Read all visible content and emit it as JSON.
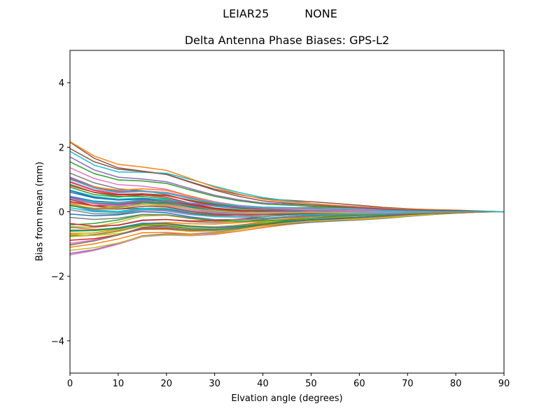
{
  "suptitle": {
    "antenna": "LEIAR25",
    "radome": "NONE"
  },
  "chart_data": {
    "type": "line",
    "title": "Delta Antenna Phase Biases: GPS-L2",
    "xlabel": "Elvation angle (degrees)",
    "ylabel": "Bias from mean (mm)",
    "xlim": [
      0,
      90
    ],
    "ylim": [
      -5,
      5
    ],
    "xticks": [
      0,
      10,
      20,
      30,
      40,
      50,
      60,
      70,
      80,
      90
    ],
    "yticks": [
      -4,
      -2,
      0,
      2,
      4
    ],
    "ytick_labels": [
      "−4",
      "−2",
      "0",
      "2",
      "4"
    ],
    "grid": false,
    "legend": "none",
    "x": [
      0,
      5,
      10,
      15,
      20,
      25,
      30,
      35,
      40,
      45,
      50,
      55,
      60,
      65,
      70,
      75,
      80,
      85,
      90
    ],
    "series_count": 60,
    "envelope": {
      "upper": [
        2.3,
        1.8,
        1.5,
        1.4,
        1.3,
        1.05,
        0.8,
        0.6,
        0.45,
        0.38,
        0.32,
        0.26,
        0.2,
        0.14,
        0.1,
        0.07,
        0.05,
        0.02,
        0.0
      ],
      "lower": [
        -1.4,
        -1.25,
        -1.05,
        -0.82,
        -0.78,
        -0.8,
        -0.76,
        -0.65,
        -0.52,
        -0.42,
        -0.34,
        -0.28,
        -0.24,
        -0.19,
        -0.13,
        -0.08,
        -0.04,
        -0.01,
        0.0
      ]
    },
    "colors": [
      "#1f77b4",
      "#ff7f0e",
      "#2ca02c",
      "#d62728",
      "#9467bd",
      "#8c564b",
      "#e377c2",
      "#7f7f7f",
      "#bcbd22",
      "#17becf"
    ]
  }
}
